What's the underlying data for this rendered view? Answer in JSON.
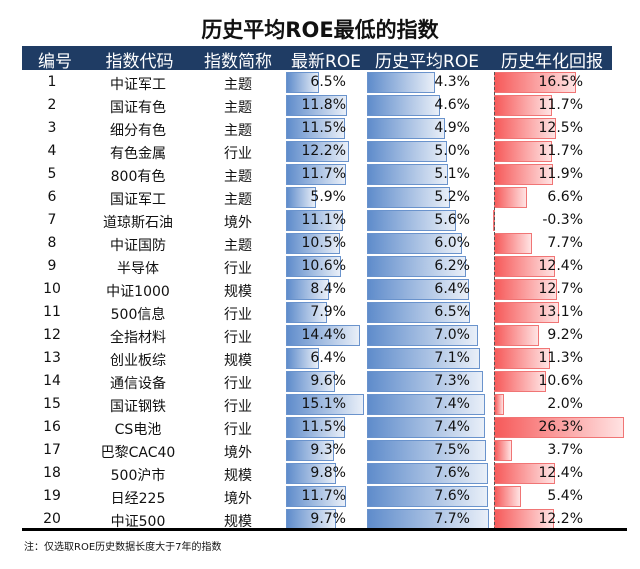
{
  "title": "历史平均ROE最低的指数",
  "headers": [
    "编号",
    "指数代码",
    "指数简称",
    "最新ROE",
    "历史平均ROE",
    "历史年化回报"
  ],
  "rows": [
    {
      "no": "1",
      "name": "中证军工",
      "type": "主题",
      "roe": 6.5,
      "avg": 4.3,
      "ret": 16.5
    },
    {
      "no": "2",
      "name": "国证有色",
      "type": "主题",
      "roe": 11.8,
      "avg": 4.6,
      "ret": 11.7
    },
    {
      "no": "3",
      "name": "细分有色",
      "type": "主题",
      "roe": 11.5,
      "avg": 4.9,
      "ret": 12.5
    },
    {
      "no": "4",
      "name": "有色金属",
      "type": "行业",
      "roe": 12.2,
      "avg": 5.0,
      "ret": 11.7
    },
    {
      "no": "5",
      "name": "800有色",
      "type": "主题",
      "roe": 11.7,
      "avg": 5.1,
      "ret": 11.9
    },
    {
      "no": "6",
      "name": "国证军工",
      "type": "主题",
      "roe": 5.9,
      "avg": 5.2,
      "ret": 6.6
    },
    {
      "no": "7",
      "name": "道琼斯石油",
      "type": "境外",
      "roe": 11.1,
      "avg": 5.6,
      "ret": -0.3
    },
    {
      "no": "8",
      "name": "中证国防",
      "type": "主题",
      "roe": 10.5,
      "avg": 6.0,
      "ret": 7.7
    },
    {
      "no": "9",
      "name": "半导体",
      "type": "行业",
      "roe": 10.6,
      "avg": 6.2,
      "ret": 12.4
    },
    {
      "no": "10",
      "name": "中证1000",
      "type": "规模",
      "roe": 8.4,
      "avg": 6.4,
      "ret": 12.7
    },
    {
      "no": "11",
      "name": "500信息",
      "type": "行业",
      "roe": 7.9,
      "avg": 6.5,
      "ret": 13.1
    },
    {
      "no": "12",
      "name": "全指材料",
      "type": "行业",
      "roe": 14.4,
      "avg": 7.0,
      "ret": 9.2
    },
    {
      "no": "13",
      "name": "创业板综",
      "type": "规模",
      "roe": 6.4,
      "avg": 7.1,
      "ret": 11.3
    },
    {
      "no": "14",
      "name": "通信设备",
      "type": "行业",
      "roe": 9.6,
      "avg": 7.3,
      "ret": 10.6
    },
    {
      "no": "15",
      "name": "国证钢铁",
      "type": "行业",
      "roe": 15.1,
      "avg": 7.4,
      "ret": 2.0
    },
    {
      "no": "16",
      "name": "CS电池",
      "type": "行业",
      "roe": 11.5,
      "avg": 7.4,
      "ret": 26.3
    },
    {
      "no": "17",
      "name": "巴黎CAC40",
      "type": "境外",
      "roe": 9.3,
      "avg": 7.5,
      "ret": 3.7
    },
    {
      "no": "18",
      "name": "500沪市",
      "type": "规模",
      "roe": 9.8,
      "avg": 7.6,
      "ret": 12.4
    },
    {
      "no": "19",
      "name": "日经225",
      "type": "境外",
      "roe": 11.7,
      "avg": 7.6,
      "ret": 5.4
    },
    {
      "no": "20",
      "name": "中证500",
      "type": "规模",
      "roe": 9.7,
      "avg": 7.7,
      "ret": 12.2
    }
  ],
  "note": "注：仅选取ROE历史数据长度大于7年的指数",
  "colors": {
    "header": "#1f3c64",
    "blue": "#5f8ccb",
    "red": "#f65a5a"
  }
}
